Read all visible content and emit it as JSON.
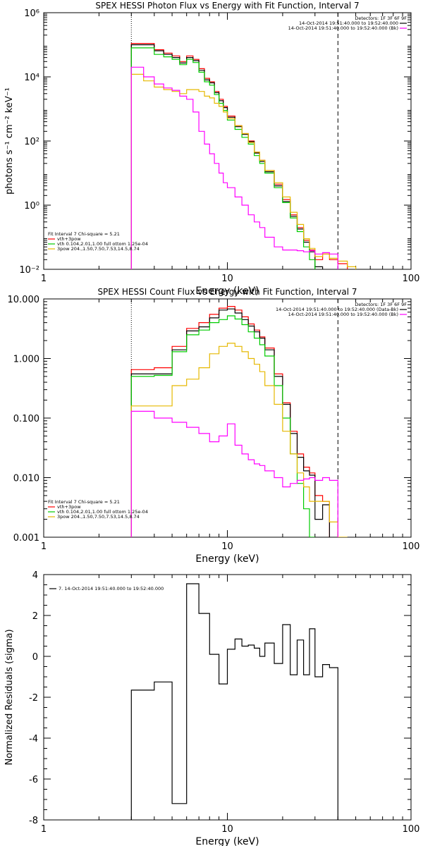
{
  "chart_data": [
    {
      "type": "line",
      "title": "SPEX HESSI Photon Flux vs Energy with Fit Function, Interval 7",
      "xlabel": "Energy (keV)",
      "ylabel": "photons s⁻¹ cm⁻² keV⁻¹",
      "xscale": "log",
      "yscale": "log",
      "xlim": [
        1,
        100
      ],
      "ylim": [
        0.01,
        1000000
      ],
      "x_ticks": [
        "1",
        "10",
        "100"
      ],
      "y_ticks": [
        "10⁻²",
        "10⁰",
        "10²",
        "10⁴",
        "10⁶"
      ],
      "grid": false,
      "vlines": [
        {
          "x": 3,
          "style": "dotted"
        },
        {
          "x": 40,
          "style": "dashed"
        }
      ],
      "legend_top": {
        "placement": "top-right",
        "header": "Detectors: 1F 3F 6F 9F",
        "entries": [
          {
            "label": "14-Oct-2014 19:51:40.000 to 19:52:40.000",
            "color": "#000000"
          },
          {
            "label": "14-Oct-2014 19:51:40.000 to 19:52:40.000 (Bk)",
            "color": "#ff00ff"
          }
        ]
      },
      "legend_bottom": {
        "placement": "bottom-left",
        "header": "Fit Interval 7   Chi-square = 5.21",
        "entries": [
          {
            "label": "vth+3pow",
            "color": "#ff0000"
          },
          {
            "label": "vth 0.104,2.01,1.00  full ottom 1.25e-04",
            "color": "#00cc00"
          },
          {
            "label": "3pow 204.,1.50,7.50,7.53,14.5,8.74",
            "color": "#e6b800"
          }
        ]
      },
      "edges": [
        3,
        3.5,
        4,
        4.5,
        5,
        5.5,
        6,
        6.5,
        7,
        7.5,
        8,
        8.5,
        9,
        9.5,
        10,
        11,
        12,
        13,
        14,
        15,
        16,
        18,
        20,
        22,
        24,
        26,
        28,
        30,
        33,
        36,
        40,
        45,
        50
      ],
      "series": [
        {
          "color": "#ff0000",
          "values": [
            110000,
            110000,
            70000,
            55000,
            45000,
            30000,
            45000,
            35000,
            18000,
            9000,
            7000,
            3500,
            2000,
            1200,
            600,
            300,
            170,
            100,
            45,
            25,
            12,
            4.5,
            1.5,
            0.5,
            0.2,
            0.08,
            0.04,
            0.02,
            0.03,
            0.02,
            0.015,
            null
          ]
        },
        {
          "color": "#000000",
          "values": [
            100000,
            100000,
            65000,
            50000,
            40000,
            27000,
            40000,
            32000,
            16000,
            8000,
            6500,
            3200,
            1800,
            1100,
            550,
            280,
            160,
            95,
            42,
            23,
            11,
            4,
            1.3,
            0.45,
            0.18,
            0.07,
            0.035,
            0.012,
            null,
            null,
            null,
            null
          ]
        },
        {
          "color": "#00cc00",
          "values": [
            80000,
            80000,
            50000,
            42000,
            35000,
            24000,
            35000,
            28000,
            14000,
            7000,
            5500,
            2800,
            1500,
            900,
            450,
            230,
            130,
            80,
            35,
            20,
            10,
            3.5,
            1.2,
            0.4,
            0.15,
            0.05,
            0.02,
            null,
            null,
            null,
            null,
            null
          ]
        },
        {
          "color": "#e6b800",
          "values": [
            12000,
            7500,
            4800,
            4000,
            3500,
            3000,
            4000,
            4000,
            3500,
            2500,
            2200,
            1500,
            1200,
            800,
            500,
            300,
            170,
            90,
            45,
            25,
            12,
            5,
            1.8,
            0.6,
            0.25,
            0.09,
            0.045,
            0.025,
            0.03,
            0.022,
            0.018,
            0.012
          ]
        },
        {
          "color": "#ff00ff",
          "values": [
            20000,
            10000,
            6000,
            4500,
            3800,
            2500,
            2000,
            800,
            200,
            80,
            40,
            20,
            10,
            5,
            3.5,
            1.8,
            1,
            0.5,
            0.3,
            0.2,
            0.1,
            0.05,
            0.04,
            0.04,
            0.038,
            0.035,
            0.038,
            0.03,
            0.033,
            0.03,
            null,
            null
          ]
        }
      ]
    },
    {
      "type": "line",
      "title": "SPEX HESSI Count Flux vs Energy with Fit Function, Interval 7",
      "xlabel": "Energy (keV)",
      "ylabel": "",
      "xscale": "log",
      "yscale": "log",
      "xlim": [
        1,
        100
      ],
      "ylim": [
        0.001,
        10
      ],
      "x_ticks": [
        "1",
        "10",
        "100"
      ],
      "y_ticks": [
        "0.001",
        "0.010",
        "0.100",
        "1.000",
        "10.000"
      ],
      "grid": false,
      "vlines": [
        {
          "x": 3,
          "style": "dotted"
        },
        {
          "x": 40,
          "style": "dashed"
        }
      ],
      "legend_top": {
        "placement": "top-right",
        "header": "Detectors: 1F 3F 6F 9F",
        "entries": [
          {
            "label": "14-Oct-2014 19:51:40.000 to 19:52:40.000 (Data-Bk)",
            "color": "#000000"
          },
          {
            "label": "14-Oct-2014 19:51:40.000 to 19:52:40.000 (Bk)",
            "color": "#ff00ff"
          }
        ]
      },
      "legend_bottom": {
        "placement": "bottom-left",
        "header": "Fit Interval 7   Chi-square = 5.21",
        "entries": [
          {
            "label": "vth+3pow",
            "color": "#ff0000"
          },
          {
            "label": "vth 0.104,2.01,1.00  full ottom 1.25e-04",
            "color": "#00cc00"
          },
          {
            "label": "3pow 204.,1.50,7.50,7.53,14.5,8.74",
            "color": "#e6b800"
          }
        ]
      },
      "edges": [
        3,
        4,
        5,
        6,
        7,
        8,
        9,
        10,
        11,
        12,
        13,
        14,
        15,
        16,
        18,
        20,
        22,
        24,
        26,
        28,
        30,
        33,
        36,
        40,
        45,
        50
      ],
      "series": [
        {
          "color": "#ff0000",
          "values": [
            0.65,
            0.7,
            1.6,
            3.2,
            4,
            5.5,
            7,
            7.5,
            6.5,
            5,
            3.8,
            3,
            2.3,
            1.5,
            0.55,
            0.18,
            0.06,
            0.025,
            0.015,
            0.012,
            0.005,
            0.004,
            null,
            null,
            null
          ]
        },
        {
          "color": "#000000",
          "values": [
            0.55,
            0.55,
            1.4,
            2.9,
            3.4,
            4.8,
            6.5,
            6.8,
            5.8,
            4.5,
            3.5,
            2.8,
            2.2,
            1.4,
            0.5,
            0.17,
            0.055,
            0.022,
            0.013,
            0.011,
            0.002,
            0.0035,
            null,
            null,
            null
          ]
        },
        {
          "color": "#00cc00",
          "values": [
            0.5,
            0.52,
            1.3,
            2.5,
            3,
            4,
            4.5,
            5.2,
            4.6,
            3.7,
            2.8,
            2.2,
            1.7,
            1.1,
            0.35,
            0.1,
            0.025,
            0.008,
            0.003,
            0.001,
            null,
            null,
            null,
            null,
            null
          ]
        },
        {
          "color": "#e6b800",
          "values": [
            0.16,
            0.16,
            0.35,
            0.45,
            0.7,
            1.2,
            1.6,
            1.8,
            1.6,
            1.3,
            1,
            0.8,
            0.6,
            0.35,
            0.17,
            0.06,
            0.025,
            0.012,
            0.007,
            0.004,
            0.004,
            0.004,
            0.0018,
            0.001,
            null
          ]
        },
        {
          "color": "#ff00ff",
          "values": [
            0.13,
            0.1,
            0.085,
            0.07,
            0.055,
            0.04,
            0.05,
            0.08,
            0.035,
            0.025,
            0.02,
            0.017,
            0.016,
            0.013,
            0.01,
            0.007,
            0.008,
            0.009,
            0.0095,
            0.01,
            0.009,
            0.01,
            0.009,
            null,
            null
          ]
        }
      ]
    },
    {
      "type": "line",
      "title": "",
      "xlabel": "Energy (keV)",
      "ylabel": "Normalized Residuals (sigma)",
      "xscale": "log",
      "yscale": "linear",
      "xlim": [
        1,
        100
      ],
      "ylim": [
        -8,
        4
      ],
      "x_ticks": [
        "1",
        "10",
        "100"
      ],
      "y_ticks": [
        "-8",
        "-6",
        "-4",
        "-2",
        "0",
        "2",
        "4"
      ],
      "grid": false,
      "legend": {
        "placement": "top-left",
        "entries": [
          {
            "label": "7. 14-Oct-2014 19:51:40.000 to 19:52:40.000",
            "color": "#000000"
          }
        ]
      },
      "edges": [
        3,
        4,
        5,
        6,
        7,
        8,
        9,
        10,
        11,
        12,
        13,
        14,
        15,
        16,
        18,
        20,
        22,
        24,
        26,
        28,
        30,
        33,
        36,
        40
      ],
      "series": [
        {
          "color": "#000000",
          "values": [
            -1.65,
            -1.25,
            -7.2,
            3.55,
            2.1,
            0.1,
            -1.35,
            0.35,
            0.85,
            0.5,
            0.55,
            0.4,
            0.0,
            0.65,
            -0.35,
            1.55,
            -0.9,
            0.8,
            -0.9,
            1.35,
            -1.0,
            -0.4,
            -0.55
          ]
        }
      ]
    }
  ]
}
